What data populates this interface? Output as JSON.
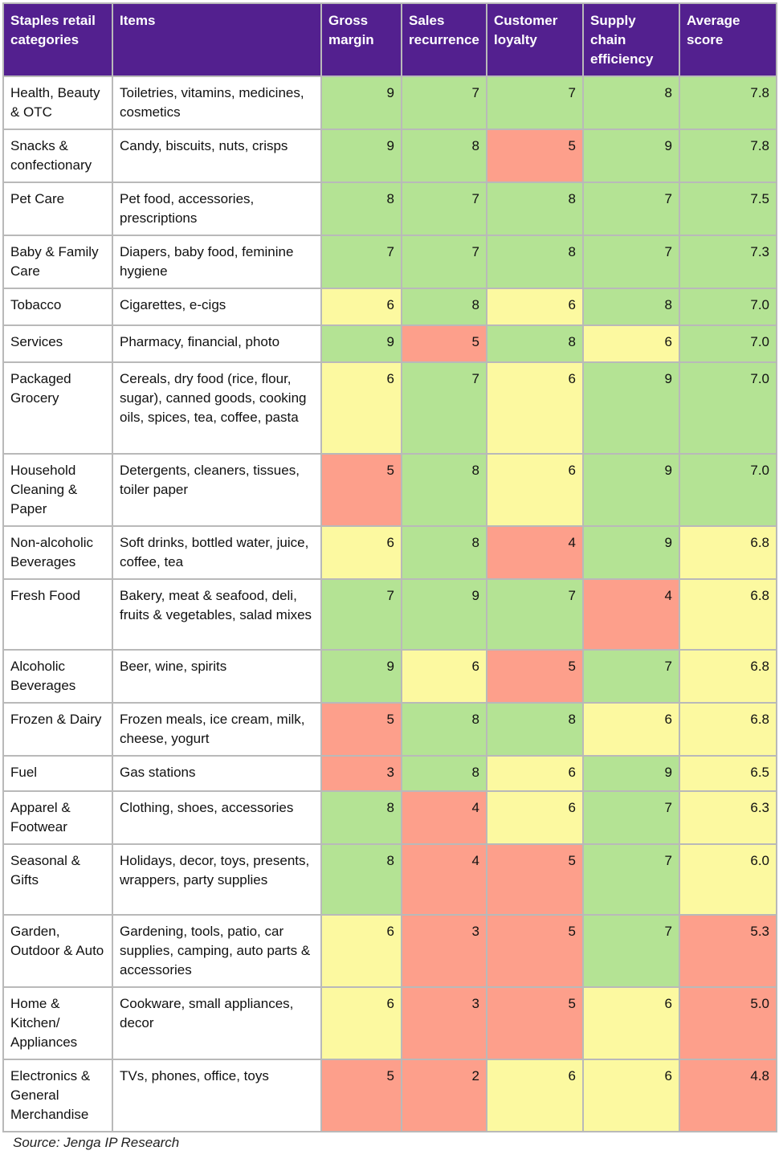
{
  "table": {
    "headers": [
      "Staples retail categories",
      "Items",
      "Gross margin",
      "Sales recurrence",
      "Customer loyalty",
      "Supply chain efficiency",
      "Average score"
    ],
    "rows": [
      {
        "category": "Health, Beauty & OTC",
        "items": "Toiletries, vitamins, medicines, cosmetics",
        "gross_margin": "9",
        "sales_recurrence": "7",
        "customer_loyalty": "7",
        "supply_chain": "8",
        "average": "7.8"
      },
      {
        "category": "Snacks & confectionary",
        "items": "Candy, biscuits, nuts, crisps",
        "gross_margin": "9",
        "sales_recurrence": "8",
        "customer_loyalty": "5",
        "supply_chain": "9",
        "average": "7.8"
      },
      {
        "category": "Pet Care",
        "items": "Pet food, accessories, prescriptions",
        "gross_margin": "8",
        "sales_recurrence": "7",
        "customer_loyalty": "8",
        "supply_chain": "7",
        "average": "7.5"
      },
      {
        "category": "Baby & Family Care",
        "items": "Diapers, baby food, feminine hygiene",
        "gross_margin": "7",
        "sales_recurrence": "7",
        "customer_loyalty": "8",
        "supply_chain": "7",
        "average": "7.3"
      },
      {
        "category": "Tobacco",
        "items": "Cigarettes, e-cigs",
        "gross_margin": "6",
        "sales_recurrence": "8",
        "customer_loyalty": "6",
        "supply_chain": "8",
        "average": "7.0"
      },
      {
        "category": "Services",
        "items": "Pharmacy, financial, photo",
        "gross_margin": "9",
        "sales_recurrence": "5",
        "customer_loyalty": "8",
        "supply_chain": "6",
        "average": "7.0"
      },
      {
        "category": "Packaged Grocery",
        "items": "Cereals, dry food (rice, flour, sugar), canned goods, cooking oils, spices, tea, coffee, pasta",
        "gross_margin": "6",
        "sales_recurrence": "7",
        "customer_loyalty": "6",
        "supply_chain": "9",
        "average": "7.0"
      },
      {
        "category": "Household Cleaning & Paper",
        "items": "Detergents, cleaners, tissues, toiler paper",
        "gross_margin": "5",
        "sales_recurrence": "8",
        "customer_loyalty": "6",
        "supply_chain": "9",
        "average": "7.0"
      },
      {
        "category": "Non-alcoholic Beverages",
        "items": "Soft drinks, bottled water, juice, coffee, tea",
        "gross_margin": "6",
        "sales_recurrence": "8",
        "customer_loyalty": "4",
        "supply_chain": "9",
        "average": "6.8"
      },
      {
        "category": "Fresh Food",
        "items": "Bakery, meat & seafood, deli, fruits & vegetables, salad mixes",
        "gross_margin": "7",
        "sales_recurrence": "9",
        "customer_loyalty": "7",
        "supply_chain": "4",
        "average": "6.8"
      },
      {
        "category": "Alcoholic Beverages",
        "items": "Beer, wine, spirits",
        "gross_margin": "9",
        "sales_recurrence": "6",
        "customer_loyalty": "5",
        "supply_chain": "7",
        "average": "6.8"
      },
      {
        "category": "Frozen & Dairy",
        "items": "Frozen meals, ice cream, milk, cheese, yogurt",
        "gross_margin": "5",
        "sales_recurrence": "8",
        "customer_loyalty": "8",
        "supply_chain": "6",
        "average": "6.8"
      },
      {
        "category": "Fuel",
        "items": "Gas stations",
        "gross_margin": "3",
        "sales_recurrence": "8",
        "customer_loyalty": "6",
        "supply_chain": "9",
        "average": "6.5"
      },
      {
        "category": "Apparel & Footwear",
        "items": "Clothing, shoes, accessories",
        "gross_margin": "8",
        "sales_recurrence": "4",
        "customer_loyalty": "6",
        "supply_chain": "7",
        "average": "6.3"
      },
      {
        "category": "Seasonal & Gifts",
        "items": "Holidays, decor, toys, presents, wrappers, party supplies",
        "gross_margin": "8",
        "sales_recurrence": "4",
        "customer_loyalty": "5",
        "supply_chain": "7",
        "average": "6.0"
      },
      {
        "category": "Garden, Outdoor & Auto",
        "items": "Gardening, tools, patio, car supplies, camping, auto parts & accessories",
        "gross_margin": "6",
        "sales_recurrence": "3",
        "customer_loyalty": "5",
        "supply_chain": "7",
        "average": "5.3"
      },
      {
        "category": "Home & Kitchen/ Appliances",
        "items": "Cookware, small appliances, decor",
        "gross_margin": "6",
        "sales_recurrence": "3",
        "customer_loyalty": "5",
        "supply_chain": "6",
        "average": "5.0"
      },
      {
        "category": "Electronics & General Merchandise",
        "items": "TVs, phones, office, toys",
        "gross_margin": "5",
        "sales_recurrence": "2",
        "customer_loyalty": "6",
        "supply_chain": "6",
        "average": "4.8"
      }
    ]
  },
  "colors": {
    "header": "#53208f",
    "high": "#b4e394",
    "mid": "#fcf9a0",
    "low": "#fd9f8b"
  },
  "footer": {
    "source": "Source: Jenga IP Research"
  }
}
